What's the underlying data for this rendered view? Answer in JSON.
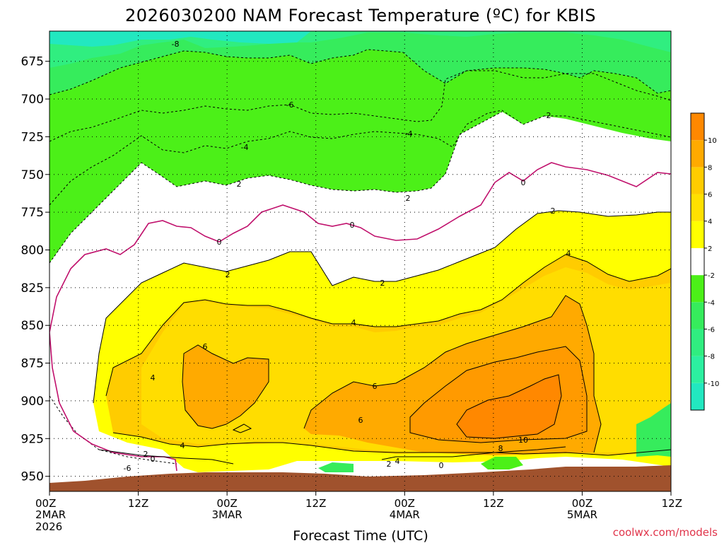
{
  "chart_data": {
    "type": "heatmap",
    "title": "2026030200 NAM Forecast Temperature (ºC) for KBIS",
    "xlabel": "Forecast Time (UTC)",
    "ylabel": "",
    "x_ticks": [
      {
        "hours": 0,
        "line1": "00Z",
        "line2": "2MAR",
        "line3": "2026"
      },
      {
        "hours": 12,
        "line1": "12Z",
        "line2": "",
        "line3": ""
      },
      {
        "hours": 24,
        "line1": "00Z",
        "line2": "3MAR",
        "line3": ""
      },
      {
        "hours": 36,
        "line1": "12Z",
        "line2": "",
        "line3": ""
      },
      {
        "hours": 48,
        "line1": "00Z",
        "line2": "4MAR",
        "line3": ""
      },
      {
        "hours": 60,
        "line1": "12Z",
        "line2": "",
        "line3": ""
      },
      {
        "hours": 72,
        "line1": "00Z",
        "line2": "5MAR",
        "line3": ""
      },
      {
        "hours": 84,
        "line1": "12Z",
        "line2": "",
        "line3": ""
      }
    ],
    "xlim_hours": [
      0,
      84
    ],
    "y_ticks": [
      675,
      700,
      725,
      750,
      775,
      800,
      825,
      850,
      875,
      900,
      925,
      950
    ],
    "ylim_mb": [
      655,
      960
    ],
    "pressure_axis_reversed": true,
    "colorbar": {
      "levels": [
        -12,
        -10,
        -8,
        -6,
        -4,
        -2,
        2,
        4,
        6,
        8,
        10,
        12
      ],
      "labels": [
        "-10",
        "-8",
        "-6",
        "-4",
        "-2",
        "2",
        "4",
        "6",
        "8",
        "10"
      ],
      "colors": [
        "#22e8c0",
        "#2cf0a0",
        "#30ee80",
        "#36ec5c",
        "#4cf018",
        "#ffffff",
        "#ffff00",
        "#ffe000",
        "#ffcc00",
        "#ffaa00",
        "#ff8800"
      ]
    },
    "ground_color": "#a0522d",
    "contour_labels": [
      "-8",
      "-6",
      "-4",
      "-2",
      "0",
      "2",
      "4",
      "6",
      "8",
      "10"
    ],
    "credit": "coolwx.com/models"
  }
}
